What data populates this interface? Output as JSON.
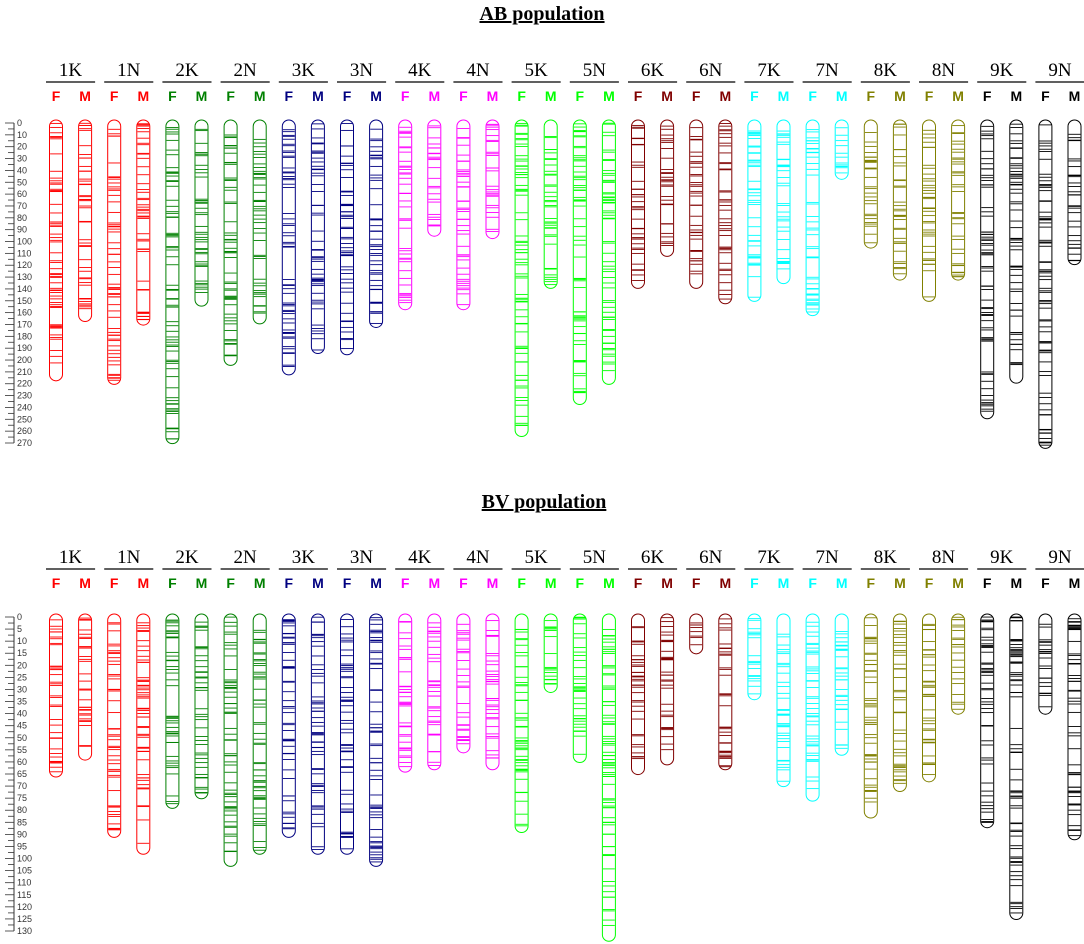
{
  "chart_data": [
    {
      "type": "linkage-map",
      "title": "AB population",
      "scale_unit": "cM",
      "axis_max": 270,
      "axis_step": 10,
      "parents": [
        "F",
        "M"
      ],
      "chromosomes": [
        {
          "label": "1K",
          "color": "#ff0000",
          "maps": [
            {
              "parent": "F",
              "length": 215
            },
            {
              "parent": "M",
              "length": 165
            }
          ]
        },
        {
          "label": "1N",
          "color": "#ff0000",
          "maps": [
            {
              "parent": "F",
              "length": 218
            },
            {
              "parent": "M",
              "length": 168
            }
          ]
        },
        {
          "label": "2K",
          "color": "#008000",
          "maps": [
            {
              "parent": "F",
              "length": 268
            },
            {
              "parent": "M",
              "length": 152
            }
          ]
        },
        {
          "label": "2N",
          "color": "#008000",
          "maps": [
            {
              "parent": "F",
              "length": 202
            },
            {
              "parent": "M",
              "length": 167
            }
          ]
        },
        {
          "label": "3K",
          "color": "#000080",
          "maps": [
            {
              "parent": "F",
              "length": 210
            },
            {
              "parent": "M",
              "length": 192
            }
          ]
        },
        {
          "label": "3N",
          "color": "#000080",
          "maps": [
            {
              "parent": "F",
              "length": 193
            },
            {
              "parent": "M",
              "length": 170
            }
          ]
        },
        {
          "label": "4K",
          "color": "#ff00ff",
          "maps": [
            {
              "parent": "F",
              "length": 155
            },
            {
              "parent": "M",
              "length": 93
            }
          ]
        },
        {
          "label": "4N",
          "color": "#ff00ff",
          "maps": [
            {
              "parent": "F",
              "length": 155
            },
            {
              "parent": "M",
              "length": 95
            }
          ]
        },
        {
          "label": "5K",
          "color": "#00ff00",
          "maps": [
            {
              "parent": "F",
              "length": 262
            },
            {
              "parent": "M",
              "length": 137
            }
          ]
        },
        {
          "label": "5N",
          "color": "#00ff00",
          "maps": [
            {
              "parent": "F",
              "length": 235
            },
            {
              "parent": "M",
              "length": 218
            }
          ]
        },
        {
          "label": "6K",
          "color": "#800000",
          "maps": [
            {
              "parent": "F",
              "length": 137
            },
            {
              "parent": "M",
              "length": 110
            }
          ]
        },
        {
          "label": "6N",
          "color": "#800000",
          "maps": [
            {
              "parent": "F",
              "length": 137
            },
            {
              "parent": "M",
              "length": 150
            }
          ]
        },
        {
          "label": "7K",
          "color": "#00ffff",
          "maps": [
            {
              "parent": "F",
              "length": 148
            },
            {
              "parent": "M",
              "length": 133
            }
          ]
        },
        {
          "label": "7N",
          "color": "#00ffff",
          "maps": [
            {
              "parent": "F",
              "length": 160
            },
            {
              "parent": "M",
              "length": 45
            }
          ]
        },
        {
          "label": "8K",
          "color": "#808000",
          "maps": [
            {
              "parent": "F",
              "length": 103
            },
            {
              "parent": "M",
              "length": 130
            }
          ]
        },
        {
          "label": "8N",
          "color": "#808000",
          "maps": [
            {
              "parent": "F",
              "length": 148
            },
            {
              "parent": "M",
              "length": 130
            }
          ]
        },
        {
          "label": "9K",
          "color": "#000000",
          "maps": [
            {
              "parent": "F",
              "length": 247
            },
            {
              "parent": "M",
              "length": 217
            }
          ]
        },
        {
          "label": "9N",
          "color": "#000000",
          "maps": [
            {
              "parent": "F",
              "length": 272
            },
            {
              "parent": "M",
              "length": 117
            }
          ]
        }
      ]
    },
    {
      "type": "linkage-map",
      "title": "BV population",
      "scale_unit": "cM",
      "axis_max": 130,
      "axis_step": 5,
      "parents": [
        "F",
        "M"
      ],
      "chromosomes": [
        {
          "label": "1K",
          "color": "#ff0000",
          "maps": [
            {
              "parent": "F",
              "length": 65
            },
            {
              "parent": "M",
              "length": 58
            }
          ]
        },
        {
          "label": "1N",
          "color": "#ff0000",
          "maps": [
            {
              "parent": "F",
              "length": 90
            },
            {
              "parent": "M",
              "length": 97
            }
          ]
        },
        {
          "label": "2K",
          "color": "#008000",
          "maps": [
            {
              "parent": "F",
              "length": 78
            },
            {
              "parent": "M",
              "length": 74
            }
          ]
        },
        {
          "label": "2N",
          "color": "#008000",
          "maps": [
            {
              "parent": "F",
              "length": 102
            },
            {
              "parent": "M",
              "length": 97
            }
          ]
        },
        {
          "label": "3K",
          "color": "#000080",
          "maps": [
            {
              "parent": "F",
              "length": 90
            },
            {
              "parent": "M",
              "length": 97
            }
          ]
        },
        {
          "label": "3N",
          "color": "#000080",
          "maps": [
            {
              "parent": "F",
              "length": 97
            },
            {
              "parent": "M",
              "length": 102
            }
          ]
        },
        {
          "label": "4K",
          "color": "#ff00ff",
          "maps": [
            {
              "parent": "F",
              "length": 63
            },
            {
              "parent": "M",
              "length": 62
            }
          ]
        },
        {
          "label": "4N",
          "color": "#ff00ff",
          "maps": [
            {
              "parent": "F",
              "length": 55
            },
            {
              "parent": "M",
              "length": 62
            }
          ]
        },
        {
          "label": "5K",
          "color": "#00ff00",
          "maps": [
            {
              "parent": "F",
              "length": 88
            },
            {
              "parent": "M",
              "length": 30
            }
          ]
        },
        {
          "label": "5N",
          "color": "#00ff00",
          "maps": [
            {
              "parent": "F",
              "length": 59
            },
            {
              "parent": "M",
              "length": 133
            }
          ]
        },
        {
          "label": "6K",
          "color": "#800000",
          "maps": [
            {
              "parent": "F",
              "length": 64
            },
            {
              "parent": "M",
              "length": 60
            }
          ]
        },
        {
          "label": "6N",
          "color": "#800000",
          "maps": [
            {
              "parent": "F",
              "length": 14
            },
            {
              "parent": "M",
              "length": 62
            }
          ]
        },
        {
          "label": "7K",
          "color": "#00ffff",
          "maps": [
            {
              "parent": "F",
              "length": 33
            },
            {
              "parent": "M",
              "length": 69
            }
          ]
        },
        {
          "label": "7N",
          "color": "#00ffff",
          "maps": [
            {
              "parent": "F",
              "length": 75
            },
            {
              "parent": "M",
              "length": 56
            }
          ]
        },
        {
          "label": "8K",
          "color": "#808000",
          "maps": [
            {
              "parent": "F",
              "length": 82
            },
            {
              "parent": "M",
              "length": 71
            }
          ]
        },
        {
          "label": "8N",
          "color": "#808000",
          "maps": [
            {
              "parent": "F",
              "length": 67
            },
            {
              "parent": "M",
              "length": 39
            }
          ]
        },
        {
          "label": "9K",
          "color": "#000000",
          "maps": [
            {
              "parent": "F",
              "length": 86
            },
            {
              "parent": "M",
              "length": 124
            }
          ]
        },
        {
          "label": "9N",
          "color": "#000000",
          "maps": [
            {
              "parent": "F",
              "length": 39
            },
            {
              "parent": "M",
              "length": 91
            }
          ]
        }
      ]
    }
  ]
}
